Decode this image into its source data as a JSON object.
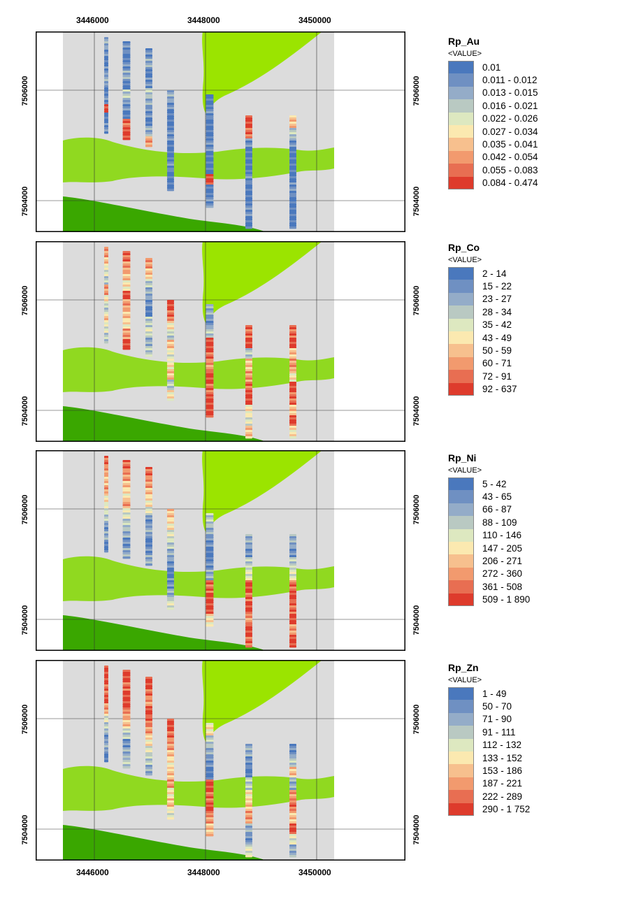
{
  "x_ticks": [
    "3446000",
    "3448000",
    "3450000"
  ],
  "y_ticks": [
    "7506000",
    "7504000"
  ],
  "panels": [
    {
      "legend": {
        "title": "Rp_Au",
        "subtitle": "<VALUE>",
        "classes": [
          "0.01",
          "0.011 - 0.012",
          "0.013 - 0.015",
          "0.016 - 0.021",
          "0.022 - 0.026",
          "0.027 - 0.034",
          "0.035 - 0.041",
          "0.042 - 0.054",
          "0.055 - 0.083",
          "0.084 - 0.474"
        ]
      }
    },
    {
      "legend": {
        "title": "Rp_Co",
        "subtitle": "<VALUE>",
        "classes": [
          "2 - 14",
          "15 - 22",
          "23 - 27",
          "28 - 34",
          "35 - 42",
          "43 - 49",
          "50 - 59",
          "60 - 71",
          "72 - 91",
          "92 - 637"
        ]
      }
    },
    {
      "legend": {
        "title": "Rp_Ni",
        "subtitle": "<VALUE>",
        "classes": [
          "5 - 42",
          "43 - 65",
          "66 - 87",
          "88 - 109",
          "110 - 146",
          "147 - 205",
          "206 - 271",
          "272 - 360",
          "361 - 508",
          "509 - 1 890"
        ]
      }
    },
    {
      "legend": {
        "title": "Rp_Zn",
        "subtitle": "<VALUE>",
        "classes": [
          "1 - 49",
          "50 - 70",
          "71 - 90",
          "91 - 111",
          "112 - 132",
          "133 - 152",
          "153 - 186",
          "187 - 221",
          "222 - 289",
          "290 - 1 752"
        ]
      }
    }
  ],
  "colors": {
    "ramp": [
      "#4a78bd",
      "#6f90c2",
      "#94acc8",
      "#b9c9c2",
      "#dde8c0",
      "#fbe9b0",
      "#f7c08e",
      "#f29a6e",
      "#e86e52",
      "#de3b2c"
    ],
    "background": "#dcdcdc",
    "light_green": "#9be400",
    "mid_green": "#90d920",
    "dark_green": "#3aa700"
  }
}
